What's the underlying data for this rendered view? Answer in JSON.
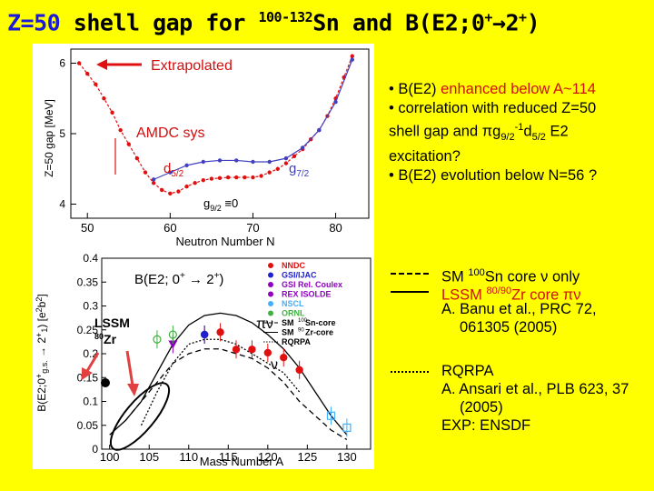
{
  "title": {
    "part1": "Z=50",
    "part2": " shell gap for ",
    "mass_range": "100-132",
    "part3": "Sn and B(E2;0",
    "sup1": "+",
    "arrow": "→2",
    "sup2": "+",
    "part4": ")"
  },
  "top_plot": {
    "ylabel": "Z=50 gap [MeV]",
    "xlabel": "Neutron Number N",
    "yticks": [
      "4",
      "5",
      "6"
    ],
    "xticks": [
      "50",
      "60",
      "70",
      "80"
    ],
    "annotations": {
      "extrapolated": "Extrapolated",
      "amdc": "AMDC sys",
      "d52": "d",
      "d52_sub": "5/2",
      "g72": "g",
      "g72_sub": "7/2",
      "g92": "g",
      "g92_sub": "9/2",
      "g92_tail": " ≡0"
    },
    "colors": {
      "red_series": "#e01010",
      "blue_series": "#4040c0"
    }
  },
  "chart_data": [
    {
      "type": "line",
      "title": "",
      "xlabel": "Neutron Number N",
      "ylabel": "Z=50 gap [MeV]",
      "xlim": [
        48,
        84
      ],
      "ylim": [
        3.8,
        6.2
      ],
      "series": [
        {
          "color": "#e01010",
          "x": [
            49,
            50,
            51,
            52,
            53,
            54,
            55,
            56,
            57,
            58,
            59,
            60,
            61,
            62,
            63,
            64,
            65,
            66,
            67,
            68,
            69,
            70,
            71,
            72,
            73,
            74,
            75,
            76,
            77,
            78,
            79,
            80,
            81,
            82
          ],
          "y": [
            6.0,
            5.85,
            5.7,
            5.5,
            5.3,
            5.05,
            4.85,
            4.65,
            4.45,
            4.3,
            4.2,
            4.15,
            4.18,
            4.25,
            4.3,
            4.34,
            4.36,
            4.37,
            4.38,
            4.38,
            4.38,
            4.38,
            4.4,
            4.45,
            4.5,
            4.58,
            4.68,
            4.78,
            4.92,
            5.05,
            5.25,
            5.5,
            5.8,
            6.1
          ]
        },
        {
          "color": "#4040c0",
          "x": [
            58,
            60,
            62,
            64,
            66,
            68,
            70,
            72,
            74,
            76,
            78,
            80,
            82
          ],
          "y": [
            4.35,
            4.45,
            4.55,
            4.6,
            4.62,
            4.62,
            4.6,
            4.6,
            4.65,
            4.8,
            5.05,
            5.45,
            6.05
          ]
        }
      ]
    },
    {
      "type": "scatter",
      "title": "B(E2; 0+ → 2+)",
      "xlabel": "Mass Number A",
      "ylabel": "B(E2;0+g.s. → 2+1) [e²b²]",
      "xlim": [
        99,
        133
      ],
      "ylim": [
        0,
        0.4
      ],
      "xticks": [
        100,
        105,
        110,
        115,
        120,
        125,
        130
      ],
      "yticks": [
        0,
        0.05,
        0.1,
        0.15,
        0.2,
        0.25,
        0.3,
        0.35,
        0.4
      ],
      "series": [
        {
          "name": "NNDC",
          "color": "#e01010",
          "x": [
            112,
            114,
            116,
            118,
            120,
            122,
            124
          ],
          "y": [
            0.24,
            0.245,
            0.209,
            0.209,
            0.202,
            0.192,
            0.166
          ]
        },
        {
          "name": "GSI/IJAC",
          "color": "#2020d0",
          "x": [
            112
          ],
          "y": [
            0.24
          ]
        },
        {
          "name": "REX ISOLDE",
          "color": "#9000c0",
          "x": [
            108
          ],
          "y": [
            0.22
          ]
        },
        {
          "name": "NSCL",
          "color": "#40b0ff",
          "x": [
            128,
            130
          ],
          "y": [
            0.07,
            0.045
          ]
        },
        {
          "name": "ORNL",
          "color": "#40b040",
          "x": [
            106,
            108
          ],
          "y": [
            0.23,
            0.24
          ]
        },
        {
          "name": "SM 100Sn-core",
          "color": "#000000",
          "x": [
            102,
            104,
            106,
            108,
            110,
            112,
            114,
            116,
            118,
            120,
            122,
            124,
            126,
            128,
            130
          ],
          "y": [
            0.06,
            0.1,
            0.14,
            0.18,
            0.2,
            0.21,
            0.21,
            0.2,
            0.19,
            0.17,
            0.14,
            0.1,
            0.07,
            0.04,
            0.02
          ]
        },
        {
          "name": "SM 90Zr-core",
          "color": "#000000",
          "x": [
            100,
            102,
            104,
            106,
            108,
            110,
            112,
            114,
            116,
            118,
            120,
            122,
            124,
            126,
            128,
            130
          ],
          "y": [
            0.03,
            0.06,
            0.1,
            0.16,
            0.22,
            0.26,
            0.28,
            0.285,
            0.28,
            0.265,
            0.24,
            0.21,
            0.17,
            0.12,
            0.07,
            0.03
          ]
        },
        {
          "name": "RQRPA",
          "color": "#000000",
          "x": [
            104,
            106,
            108,
            110,
            112,
            114,
            116,
            118,
            120,
            122,
            124
          ],
          "y": [
            0.05,
            0.12,
            0.18,
            0.22,
            0.23,
            0.23,
            0.22,
            0.2,
            0.18,
            0.16,
            0.12
          ]
        }
      ]
    }
  ],
  "bottom_plot": {
    "title": "B(E2; 0",
    "title_sup1": "+",
    "title_mid": " → 2",
    "title_sup2": "+",
    "title_end": ")",
    "yticks": [
      "0",
      "0.05",
      "0.1",
      "0.15",
      "0.2",
      "0.25",
      "0.3",
      "0.35",
      "0.4"
    ],
    "xticks": [
      "100",
      "105",
      "110",
      "115",
      "120",
      "125",
      "130"
    ],
    "xlabel": "Mass Number A",
    "ylabel": "B(E2;0",
    "lssm": "LSSM",
    "zr_mass": "80",
    "zr_sym": "Zr",
    "pinu": "πν",
    "nu": "ν",
    "legend_items": [
      "NNDC",
      "GSI/IJAC",
      "GSI Rel. Coulex",
      "REX ISOLDE",
      "NSCL",
      "ORNL",
      "SM",
      "SM",
      "RQRPA"
    ],
    "legend_sn_sup": "100",
    "legend_sn": "Sn-core",
    "legend_zr_sup": "90",
    "legend_zr": "Zr-core"
  },
  "bullets": {
    "b1_pre": "• B(E2) ",
    "b1_red": "enhanced below A~114",
    "b2_line1": "• correlation with reduced Z=50",
    "b2_line2a": "shell gap and πg",
    "b2_sub1": "9/2",
    "b2_line2b": "-1",
    "b2_line2c": "d",
    "b2_sub2": "5/2",
    "b2_line2d": " E2",
    "b2_line3": "excitation?",
    "b3": "• B(E2) evolution below N=56 ?"
  },
  "legend_panel": {
    "sm_a": "SM ",
    "sm_sup": "100",
    "sm_b": "Sn core ν only",
    "lssm_a": "LSSM ",
    "lssm_sup": "80/90",
    "lssm_b": "Zr core πν",
    "banu1": "A.  Banu et al., PRC 72,",
    "banu2": "061305 (2005)",
    "rqrpa": "RQRPA",
    "ansari1": "A.  Ansari et al., PLB 623, 37",
    "ansari2": "(2005)",
    "exp": "EXP: ENSDF"
  }
}
